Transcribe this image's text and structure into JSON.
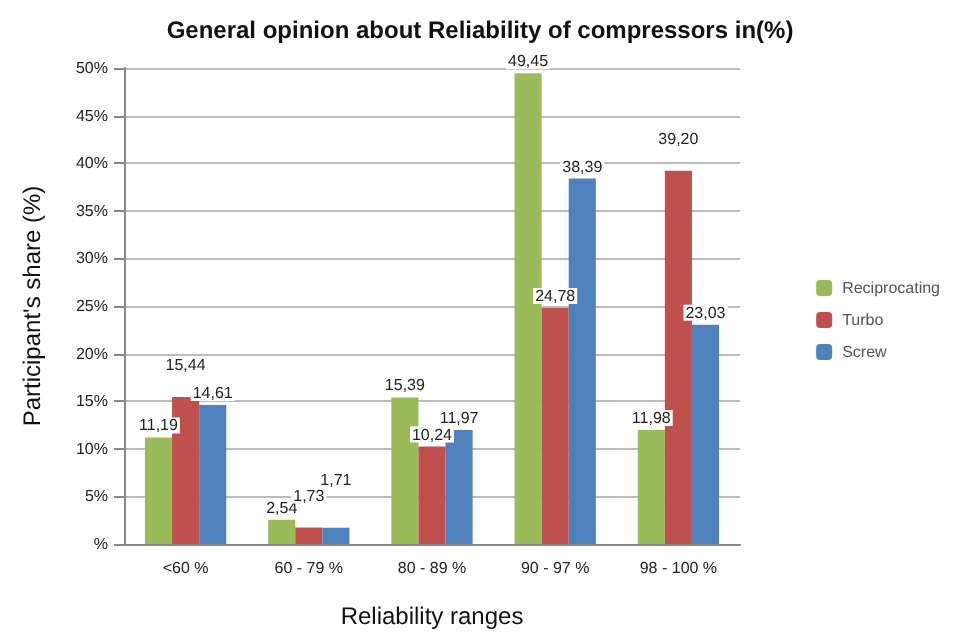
{
  "chart_data": {
    "type": "bar",
    "title": "General opinion about Reliability of compressors in(%)",
    "xlabel": "Reliability ranges",
    "ylabel": "Participant's share (%)",
    "categories": [
      "<60 %",
      "60 - 79 %",
      "80 - 89 %",
      "90 - 97 %",
      "98 - 100 %"
    ],
    "series": [
      {
        "name": "Reciprocating",
        "color": "#9bbb59",
        "values": [
          11.19,
          2.54,
          15.39,
          49.45,
          11.98
        ],
        "value_labels": [
          "11,19",
          "2,54",
          "15,39",
          "49,45",
          "11,98"
        ]
      },
      {
        "name": "Turbo",
        "color": "#c0504d",
        "values": [
          15.44,
          1.73,
          10.24,
          24.78,
          39.2
        ],
        "value_labels": [
          "15,44",
          "1,73",
          "10,24",
          "24,78",
          "39,20"
        ]
      },
      {
        "name": "Screw",
        "color": "#4f81bd",
        "values": [
          14.61,
          1.71,
          11.97,
          38.39,
          23.03
        ],
        "value_labels": [
          "14,61",
          "1,71",
          "11,97",
          "38,39",
          "23,03"
        ]
      }
    ],
    "ylim": [
      0,
      50
    ],
    "yticks": [
      {
        "value": 0,
        "label": "%"
      },
      {
        "value": 5,
        "label": "5%"
      },
      {
        "value": 10,
        "label": "10%"
      },
      {
        "value": 15,
        "label": "15%"
      },
      {
        "value": 20,
        "label": "20%"
      },
      {
        "value": 25,
        "label": "25%"
      },
      {
        "value": 30,
        "label": "30%"
      },
      {
        "value": 35,
        "label": "35%"
      },
      {
        "value": 40,
        "label": "40%"
      },
      {
        "value": 45,
        "label": "45%"
      },
      {
        "value": 50,
        "label": "50%"
      }
    ],
    "grid": "y",
    "legend": "right"
  }
}
